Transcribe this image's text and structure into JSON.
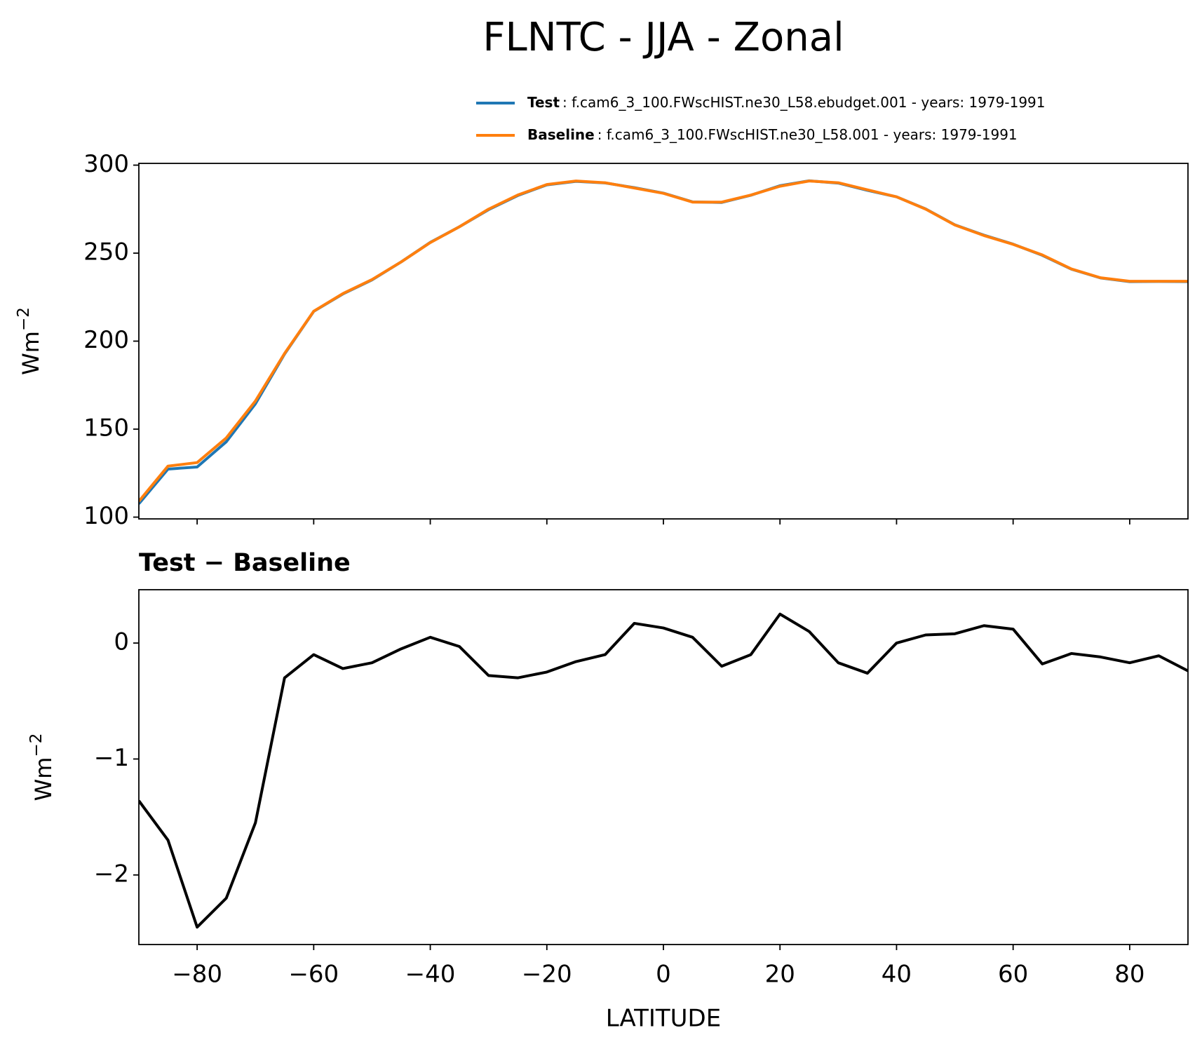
{
  "chart_data": [
    {
      "type": "line",
      "title": "FLNTC - JJA - Zonal",
      "ylabel": "Wm",
      "ylabel_sup": "−2",
      "x": [
        -90,
        -85,
        -80,
        -75,
        -70,
        -65,
        -60,
        -55,
        -50,
        -45,
        -40,
        -35,
        -30,
        -25,
        -20,
        -15,
        -10,
        -5,
        0,
        5,
        10,
        15,
        20,
        25,
        30,
        35,
        40,
        45,
        50,
        55,
        60,
        65,
        70,
        75,
        80,
        85,
        90
      ],
      "series": [
        {
          "name": "Test",
          "legend_text": ": f.cam6_3_100.FWscHIST.ne30_L58.ebudget.001 - years: 1979-1991",
          "color": "#1f77b4",
          "values": [
            107.6,
            127.3,
            128.5,
            142.8,
            164.4,
            192.7,
            216.9,
            226.8,
            234.8,
            245,
            256.1,
            265,
            274.7,
            282.7,
            288.8,
            290.8,
            289.9,
            287.2,
            284.1,
            279.1,
            278.8,
            282.9,
            288.3,
            291.1,
            289.8,
            285.7,
            282,
            275.1,
            266.1,
            260.2,
            255.1,
            248.8,
            240.9,
            235.9,
            233.8,
            233.9,
            233.8
          ]
        },
        {
          "name": "Baseline",
          "legend_text": ": f.cam6_3_100.FWscHIST.ne30_L58.001 - years: 1979-1991",
          "color": "#ff7f0e",
          "values": [
            109,
            129,
            131,
            145,
            166,
            193,
            217,
            227,
            235,
            245,
            256,
            265,
            275,
            283,
            289,
            291,
            290,
            287,
            284,
            279,
            279,
            283,
            288,
            291,
            290,
            286,
            282,
            275,
            266,
            260,
            255,
            249,
            241,
            236,
            234,
            234,
            234
          ]
        }
      ],
      "xlim": [
        -90,
        90
      ],
      "xticks": [
        -80,
        -60,
        -40,
        -20,
        0,
        20,
        40,
        60,
        80
      ],
      "ylim": [
        99,
        301
      ],
      "yticks": [
        100,
        150,
        200,
        250,
        300
      ]
    },
    {
      "type": "line",
      "title": "Test − Baseline",
      "ylabel": "Wm",
      "ylabel_sup": "−2",
      "xlabel": "LATITUDE",
      "x": [
        -90,
        -85,
        -80,
        -75,
        -70,
        -65,
        -60,
        -55,
        -50,
        -45,
        -40,
        -35,
        -30,
        -25,
        -20,
        -15,
        -10,
        -5,
        0,
        5,
        10,
        15,
        20,
        25,
        30,
        35,
        40,
        45,
        50,
        55,
        60,
        65,
        70,
        75,
        80,
        85,
        90
      ],
      "series": [
        {
          "color": "#000000",
          "values": [
            -1.36,
            -1.7,
            -2.45,
            -2.2,
            -1.55,
            -0.3,
            -0.1,
            -0.22,
            -0.17,
            -0.05,
            0.05,
            -0.03,
            -0.28,
            -0.3,
            -0.25,
            -0.16,
            -0.1,
            0.17,
            0.13,
            0.05,
            -0.2,
            -0.1,
            0.25,
            0.1,
            -0.17,
            -0.26,
            0.0,
            0.07,
            0.08,
            0.15,
            0.12,
            -0.18,
            -0.09,
            -0.12,
            -0.17,
            -0.11,
            -0.24
          ]
        }
      ],
      "xlim": [
        -90,
        90
      ],
      "xticks": [
        {
          "value": -80,
          "label": "−80"
        },
        {
          "value": -60,
          "label": "−60"
        },
        {
          "value": -40,
          "label": "−40"
        },
        {
          "value": -20,
          "label": "−20"
        },
        0,
        20,
        40,
        60,
        80
      ],
      "ylim": [
        -2.6,
        0.46
      ],
      "yticks": [
        {
          "value": -2,
          "label": "−2"
        },
        {
          "value": -1,
          "label": "−1"
        },
        0
      ]
    }
  ]
}
